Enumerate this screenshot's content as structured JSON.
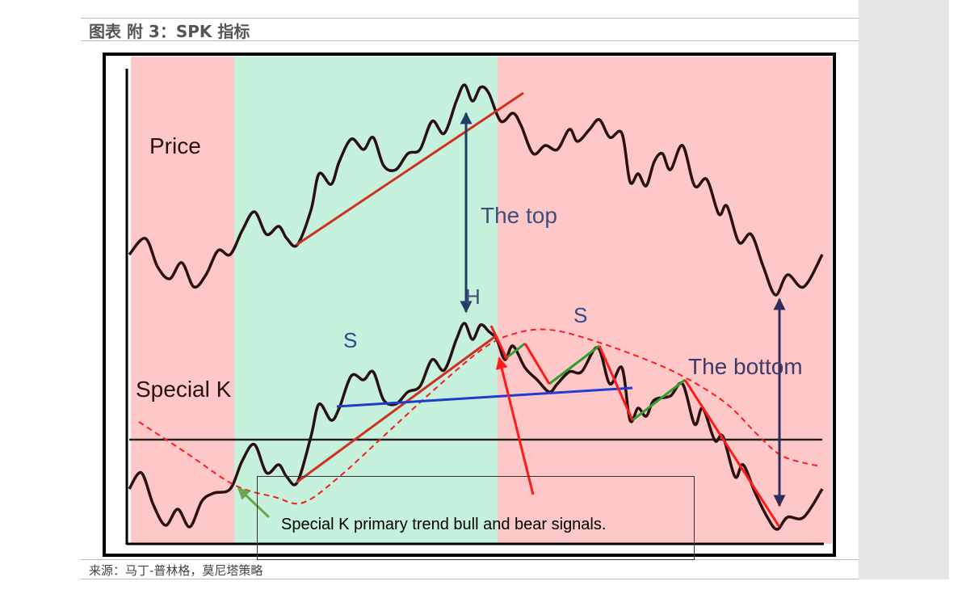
{
  "header": {
    "title": "图表 附 3：SPK 指标"
  },
  "footer": {
    "source": "来源：马丁-普林格，莫尼塔策略"
  },
  "diagram": {
    "labels": {
      "price": "Price",
      "the_top": "The top",
      "h": "H",
      "s_left": "S",
      "s_right": "S",
      "special_k": "Special K",
      "the_bottom": "The bottom",
      "caption": "Special K primary trend bull and bear signals."
    },
    "colors": {
      "bear_zone": "#ffc8c8",
      "bull_zone": "#c6f2dd",
      "price_line": "#2a1010",
      "trend_line": "#d03020",
      "signal_red": "#ff1a1a",
      "signal_green": "#2ea02e",
      "neckline_blue": "#1f3ccf",
      "arrow_navy": "#1f3f66"
    }
  }
}
